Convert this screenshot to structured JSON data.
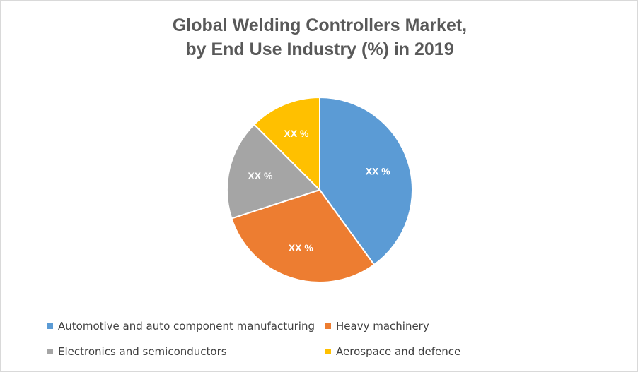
{
  "chart_data": {
    "type": "pie",
    "title": [
      "Global Welding Controllers Market,",
      "by End Use Industry (%) in 2019"
    ],
    "slices": [
      {
        "name": "Automotive and auto component manufacturing",
        "value": 40,
        "label": "XX %",
        "color": "#5b9bd5"
      },
      {
        "name": "Heavy machinery",
        "value": 30,
        "label": "XX %",
        "color": "#ed7d31"
      },
      {
        "name": "Electronics and semiconductors",
        "value": 17.5,
        "label": "XX %",
        "color": "#a5a5a5"
      },
      {
        "name": "Aerospace and defence",
        "value": 12.5,
        "label": "XX %",
        "color": "#ffc000"
      }
    ],
    "legend_position": "bottom"
  }
}
